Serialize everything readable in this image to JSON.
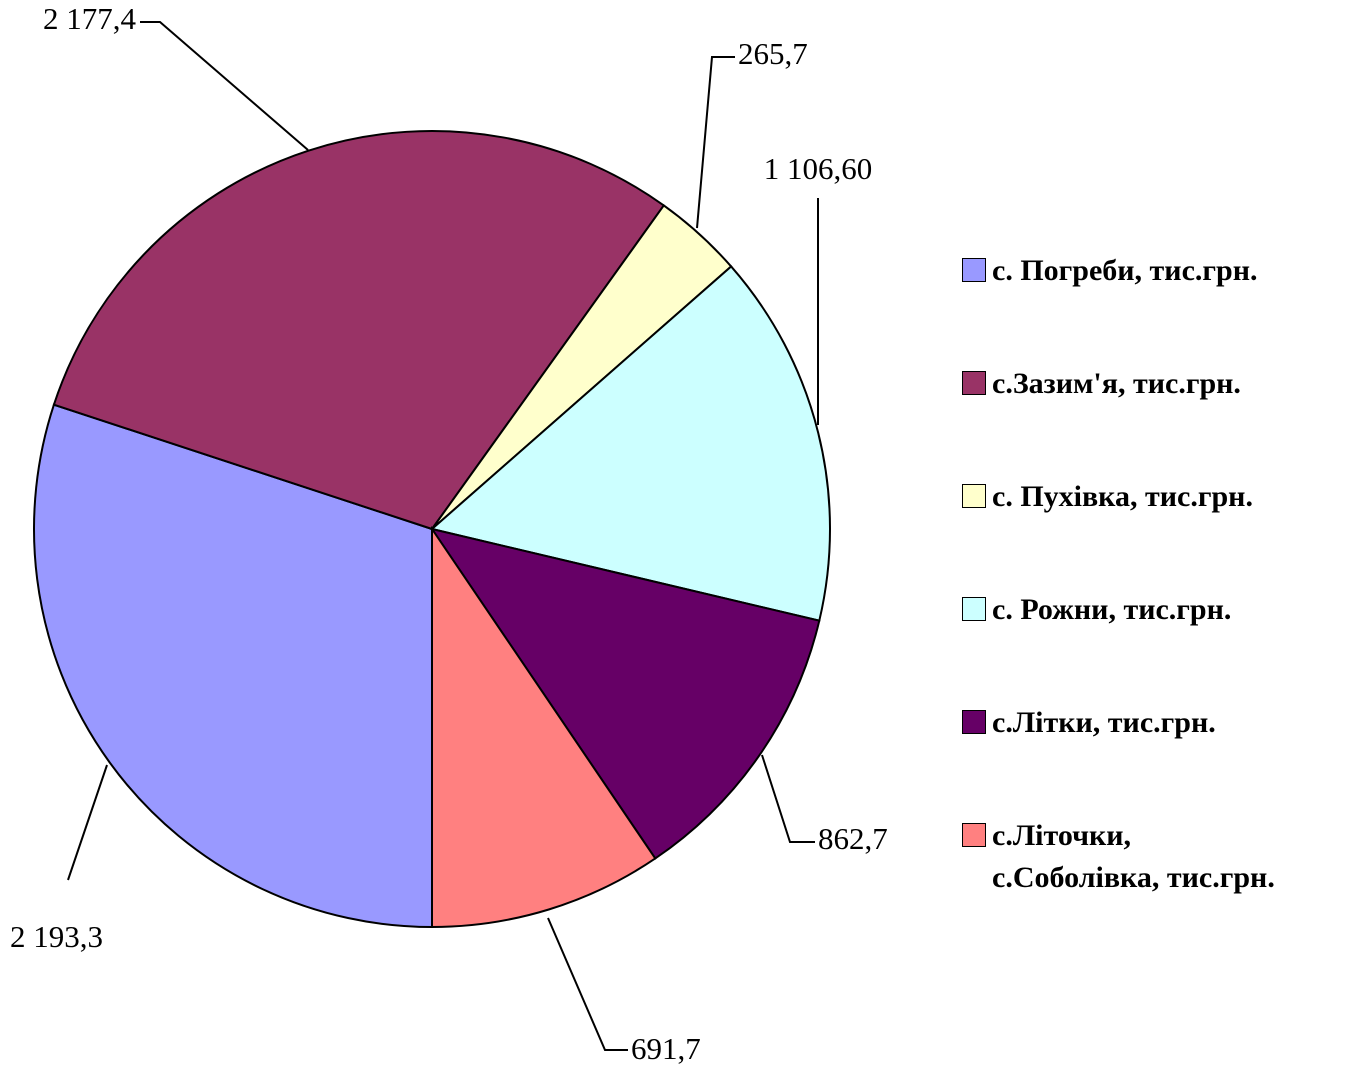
{
  "chart_data": {
    "type": "pie",
    "categories": [
      "с. Погреби, тис.грн.",
      "с.Зазим'я, тис.грн.",
      "с. Пухівка, тис.грн.",
      "с. Рожни, тис.грн.",
      "с.Літки, тис.грн.",
      "с.Літочки,\nс.Соболівка, тис.грн."
    ],
    "values": [
      2193.3,
      2177.4,
      265.7,
      1106.6,
      862.7,
      691.7
    ],
    "value_labels": [
      "2 193,3",
      "2 177,4",
      "265,7",
      "1 106,60",
      "862,7",
      "691,7"
    ],
    "colors": [
      "#9999ff",
      "#993366",
      "#ffffcc",
      "#ccffff",
      "#660066",
      "#ff8080"
    ],
    "legend": "right"
  }
}
